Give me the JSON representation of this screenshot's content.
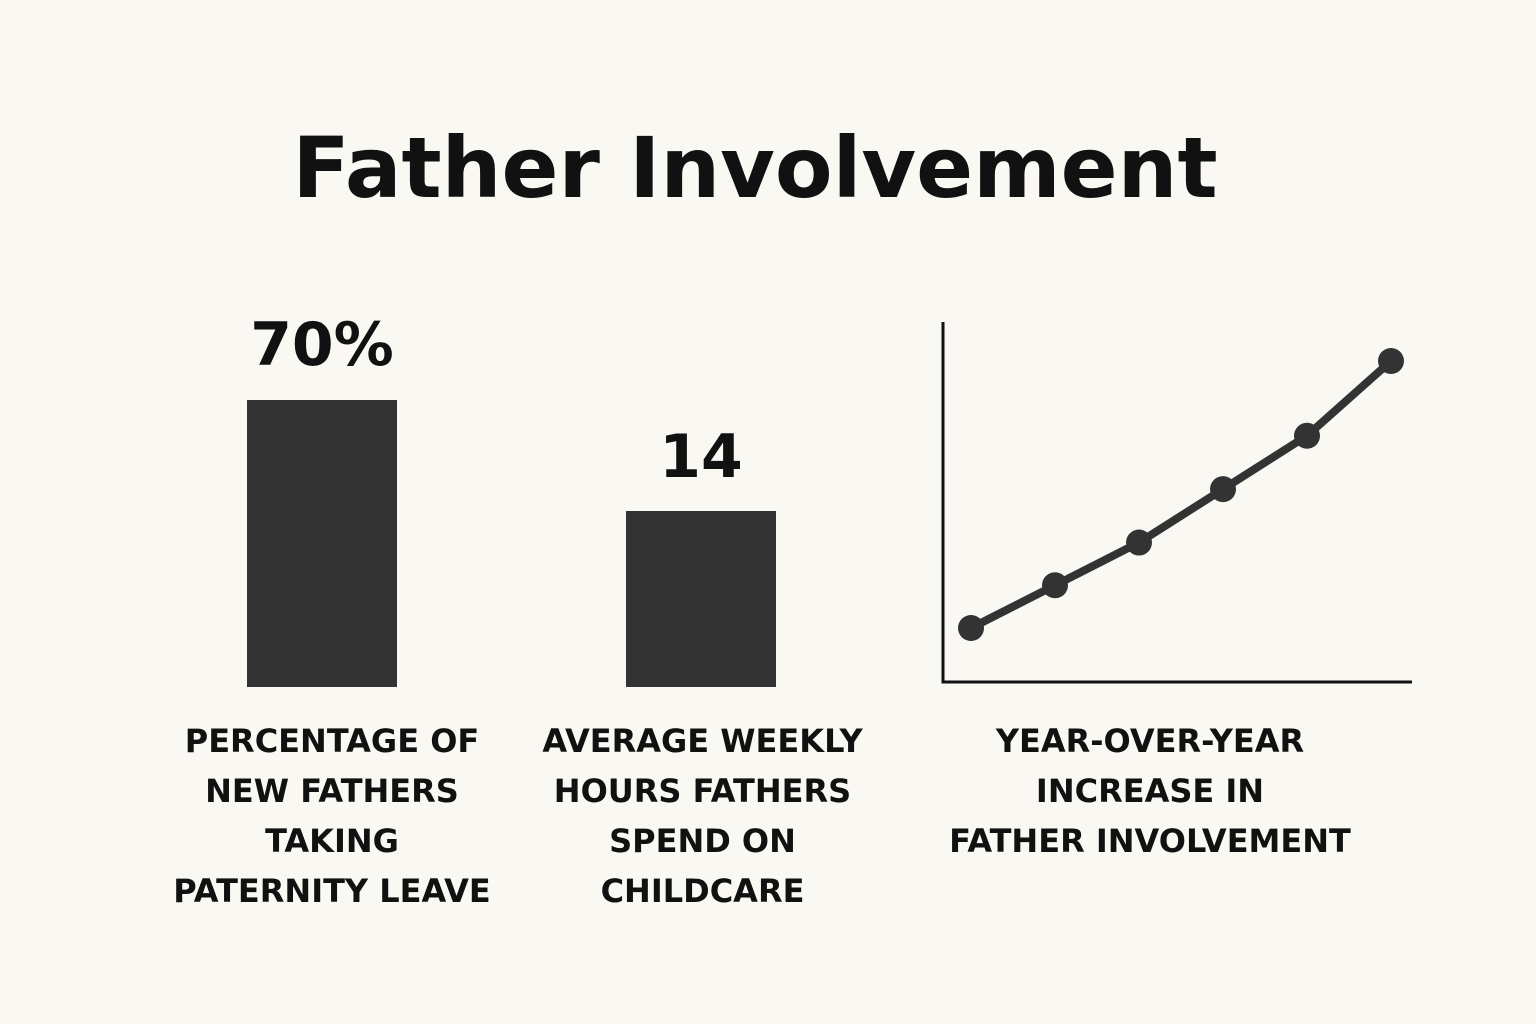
{
  "title": "Father Involvement",
  "colors": {
    "background": "#faf8f3",
    "mark": "#333333",
    "text": "#111111"
  },
  "chart_data": [
    {
      "type": "bar",
      "value_label": "70%",
      "values": [
        70
      ],
      "caption": [
        "PERCENTAGE OF",
        "NEW FATHERS",
        "TAKING",
        "PATERNITY LEAVE"
      ]
    },
    {
      "type": "bar",
      "value_label": "14",
      "values": [
        14
      ],
      "caption": [
        "AVERAGE WEEKLY",
        "HOURS FATHERS",
        "SPEND ON",
        "CHILDCARE"
      ]
    },
    {
      "type": "line",
      "x": [
        1,
        2,
        3,
        4,
        5,
        6
      ],
      "y": [
        1.0,
        2.2,
        3.4,
        4.9,
        6.4,
        8.5
      ],
      "grid": false,
      "caption": [
        "YEAR-OVER-YEAR",
        "INCREASE IN",
        "FATHER INVOLVEMENT"
      ]
    }
  ]
}
